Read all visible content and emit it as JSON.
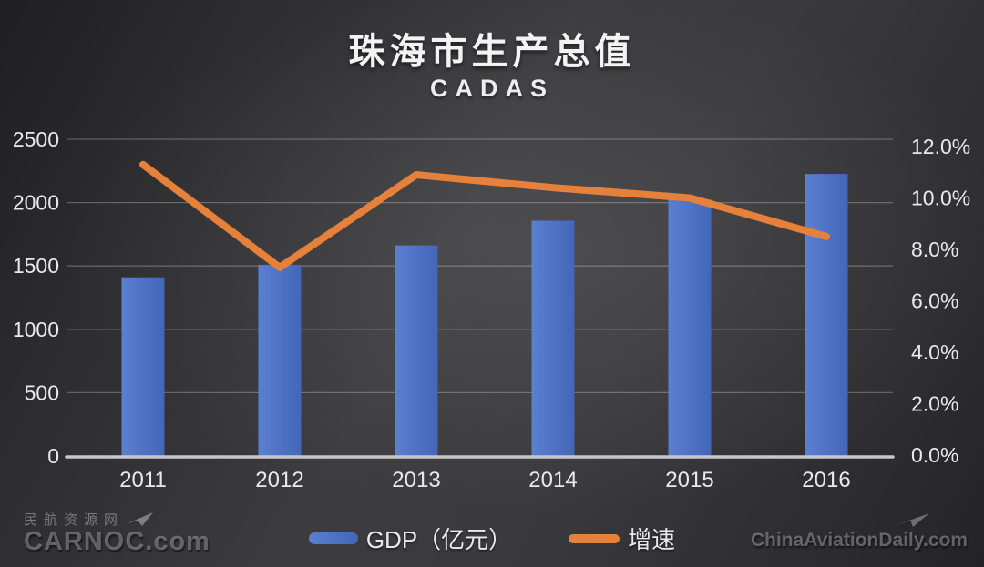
{
  "header": {
    "title": "珠海市生产总值",
    "subtitle": "CADAS"
  },
  "chart_data": {
    "type": "bar",
    "subtype": "combo-bar-line-dual-axis",
    "title": "珠海市生产总值",
    "subtitle": "CADAS",
    "categories": [
      "2011",
      "2012",
      "2013",
      "2014",
      "2015",
      "2016"
    ],
    "series": [
      {
        "name": "GDP（亿元）",
        "type": "bar",
        "axis": "left",
        "color": "#4d73c6",
        "values": [
          1410,
          1509,
          1662,
          1857,
          2025,
          2226
        ]
      },
      {
        "name": "增速",
        "type": "line",
        "axis": "right",
        "color": "#e6813b",
        "values": [
          11.3,
          7.3,
          10.9,
          10.4,
          10.0,
          8.5
        ]
      }
    ],
    "left_axis": {
      "range": [
        0,
        2500
      ],
      "ticks": [
        0,
        500,
        1000,
        1500,
        2000,
        2500
      ],
      "labels": [
        "0",
        "500",
        "1000",
        "1500",
        "2000",
        "2500"
      ]
    },
    "right_axis": {
      "range": [
        0,
        12
      ],
      "ticks": [
        0,
        2,
        4,
        6,
        8,
        10,
        12
      ],
      "labels": [
        "0.0%",
        "2.0%",
        "4.0%",
        "6.0%",
        "8.0%",
        "10.0%",
        "12.0%"
      ]
    },
    "grid": true,
    "legend_position": "bottom"
  },
  "legend": {
    "items": [
      {
        "label": "GDP（亿元）",
        "color": "#4d73c6",
        "swatch": "bar"
      },
      {
        "label": "增速",
        "color": "#e6813b",
        "swatch": "line"
      }
    ]
  },
  "watermarks": {
    "left_top": "民航资源网",
    "left_bottom": "CARNOC.com",
    "right": "ChinaAviationDaily.com"
  },
  "colors": {
    "bar": "#4d73c6",
    "bar_light": "#5a80d0",
    "bar_dark": "#4466b8",
    "line": "#e6813b",
    "text": "#e9e9e9",
    "background_center": "#434346",
    "background_edge": "#222224"
  }
}
